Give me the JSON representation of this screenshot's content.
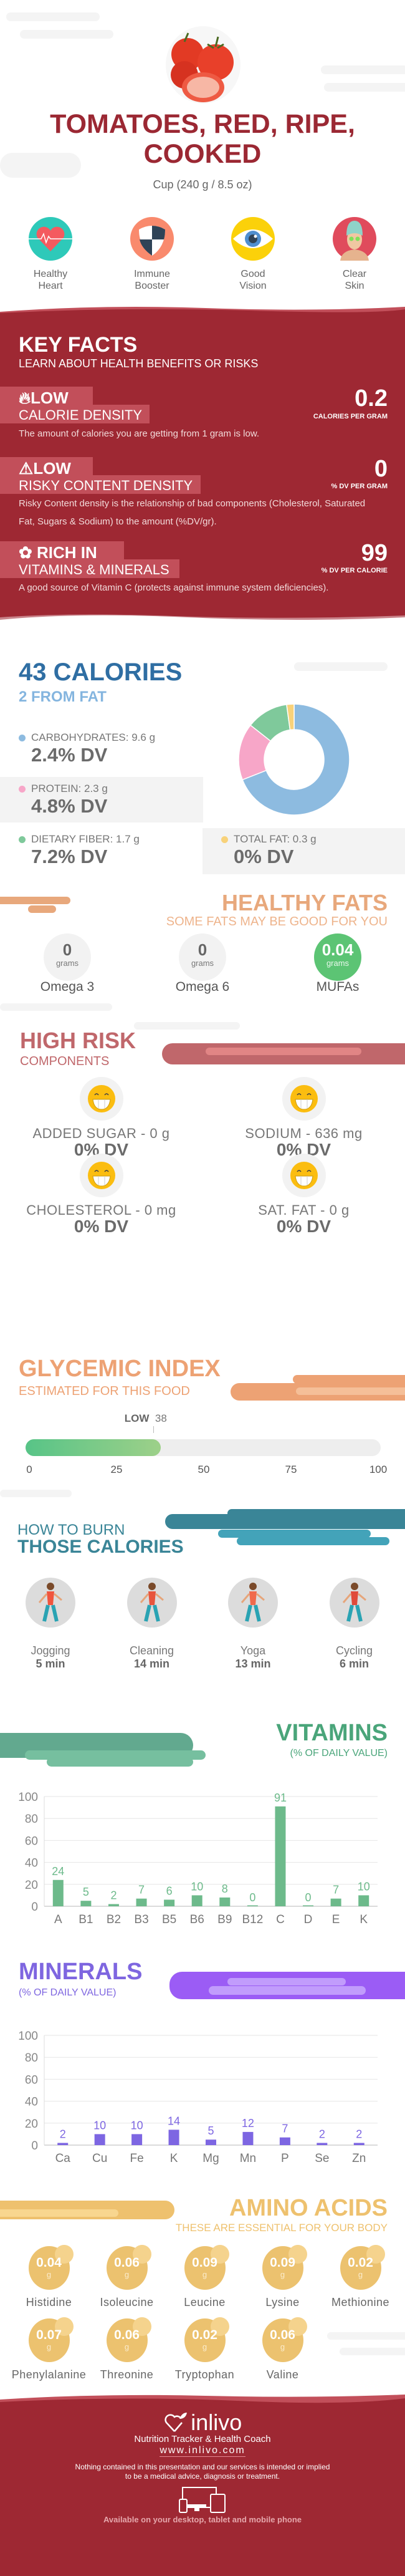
{
  "header": {
    "title_line1": "TOMATOES, RED, RIPE,",
    "title_line2": "COOKED",
    "serving": "Cup (240 g / 8.5 oz)",
    "benefits": [
      {
        "line1": "Healthy",
        "line2": "Heart",
        "icon": "heart-icon"
      },
      {
        "line1": "Immune",
        "line2": "Booster",
        "icon": "shield-icon"
      },
      {
        "line1": "Good",
        "line2": "Vision",
        "icon": "eye-icon"
      },
      {
        "line1": "Clear",
        "line2": "Skin",
        "icon": "face-mask-icon"
      }
    ]
  },
  "key_facts": {
    "title": "KEY FACTS",
    "subtitle": "LEARN ABOUT HEALTH BENEFITS OR RISKS",
    "facts": [
      {
        "level": "LOW",
        "name": "CALORIE DENSITY",
        "value": "0.2",
        "unit": "CALORIES PER GRAM",
        "desc": "The amount of calories you are getting from 1 gram is low.",
        "icon": "flame-icon"
      },
      {
        "level": "LOW",
        "name": "RISKY CONTENT DENSITY",
        "value": "0",
        "unit": "% DV PER GRAM",
        "desc": "Risky Content density is the relationship of bad components (Cholesterol, Saturated Fat, Sugars & Sodium) to the amount (%DV/gr).",
        "icon": "warning-icon"
      },
      {
        "level": "RICH  IN",
        "name": "VITAMINS & MINERALS",
        "value": "99",
        "unit": "% DV PER CALORIE",
        "desc": "A good source of Vitamin C (protects against immune system deficiencies).",
        "icon": "leaf-icon"
      }
    ]
  },
  "calories": {
    "title": "43 CALORIES",
    "subtitle": "2 FROM FAT",
    "items": [
      {
        "label": "CARBOHYDRATES: 9.6 g",
        "dv": "2.4% DV",
        "grams": 9.6,
        "color": "#8dbbe0"
      },
      {
        "label": "PROTEIN: 2.3 g",
        "dv": "4.8% DV",
        "grams": 2.3,
        "color": "#f7a6c8"
      },
      {
        "label": "DIETARY FIBER: 1.7 g",
        "dv": "7.2% DV",
        "grams": 1.7,
        "color": "#7fc99b"
      },
      {
        "label": "TOTAL FAT: 0.3 g",
        "dv": "0% DV",
        "grams": 0.3,
        "color": "#f8d27a"
      }
    ]
  },
  "healthy_fats": {
    "title": "HEALTHY FATS",
    "subtitle": "SOME FATS MAY BE GOOD FOR YOU",
    "unit": "grams",
    "items": [
      {
        "value": "0",
        "name": "Omega 3"
      },
      {
        "value": "0",
        "name": "Omega 6"
      },
      {
        "value": "0.04",
        "name": "MUFAs"
      }
    ]
  },
  "high_risk": {
    "title": "HIGH RISK",
    "subtitle": "COMPONENTS",
    "items": [
      {
        "label": "ADDED SUGAR - 0 g",
        "dv": "0% DV"
      },
      {
        "label": "SODIUM - 636 mg",
        "dv": "0% DV"
      },
      {
        "label": "CHOLESTEROL - 0 mg",
        "dv": "0% DV"
      },
      {
        "label": "SAT. FAT - 0 g",
        "dv": "0% DV"
      }
    ]
  },
  "glycemic": {
    "title": "GLYCEMIC INDEX",
    "subtitle": "ESTIMATED FOR THIS FOOD",
    "level": "LOW",
    "value": 38,
    "value_label": "38",
    "ticks": [
      "0",
      "25",
      "50",
      "75",
      "100"
    ]
  },
  "burn": {
    "title1": "HOW TO BURN",
    "title2": "THOSE CALORIES",
    "activities": [
      {
        "name": "Jogging",
        "time": "5 min"
      },
      {
        "name": "Cleaning",
        "time": "14 min"
      },
      {
        "name": "Yoga",
        "time": "13 min"
      },
      {
        "name": "Cycling",
        "time": "6 min"
      }
    ]
  },
  "chart_data": [
    {
      "type": "bar",
      "title": "VITAMINS",
      "subtitle": "(% OF DAILY VALUE)",
      "categories": [
        "A",
        "B1",
        "B2",
        "B3",
        "B5",
        "B6",
        "B9",
        "B12",
        "C",
        "D",
        "E",
        "K"
      ],
      "values": [
        24,
        5,
        2,
        7,
        6,
        10,
        8,
        0,
        91,
        0,
        7,
        10
      ],
      "yticks": [
        "0",
        "20",
        "40",
        "60",
        "80",
        "100"
      ],
      "ylim": [
        0,
        100
      ],
      "grid": true,
      "color": "#6dba8b"
    },
    {
      "type": "bar",
      "title": "MINERALS",
      "subtitle": "(% OF DAILY VALUE)",
      "categories": [
        "Ca",
        "Cu",
        "Fe",
        "K",
        "Mg",
        "Mn",
        "P",
        "Se",
        "Zn"
      ],
      "values": [
        2,
        10,
        10,
        14,
        5,
        12,
        7,
        2,
        2
      ],
      "yticks": [
        "0",
        "20",
        "40",
        "60",
        "80",
        "100"
      ],
      "ylim": [
        0,
        100
      ],
      "grid": true,
      "color": "#7d66e2"
    }
  ],
  "amino": {
    "title": "AMINO ACIDS",
    "subtitle": "THESE ARE ESSENTIAL FOR YOUR BODY",
    "unit": "g",
    "items": [
      {
        "value": "0.04",
        "name": "Histidine"
      },
      {
        "value": "0.06",
        "name": "Isoleucine"
      },
      {
        "value": "0.09",
        "name": "Leucine"
      },
      {
        "value": "0.09",
        "name": "Lysine"
      },
      {
        "value": "0.02",
        "name": "Methionine"
      },
      {
        "value": "0.07",
        "name": "Phenylalanine"
      },
      {
        "value": "0.06",
        "name": "Threonine"
      },
      {
        "value": "0.02",
        "name": "Tryptophan"
      },
      {
        "value": "0.06",
        "name": "Valine"
      }
    ]
  },
  "footer": {
    "brand": "inlivo",
    "tagline": "Nutrition Tracker & Health Coach",
    "url": "www.inlivo.com",
    "disclaimer1": "Nothing contained in this presentation and our services is intended or implied",
    "disclaimer2": "to be a medical advice, diagnosis or treatment.",
    "available": "Available on your desktop, tablet and mobile phone"
  },
  "colors": {
    "brand_red": "#9e2833",
    "calories_blue": "#2f6ea3",
    "fats_orange": "#e8a87c",
    "risk_red": "#c0676b",
    "glycemic_orange": "#eda274",
    "burn_teal": "#3a8597",
    "vitamins_green": "#4aa57a",
    "minerals_purple": "#7e66e0",
    "amino_gold": "#eec16e"
  }
}
